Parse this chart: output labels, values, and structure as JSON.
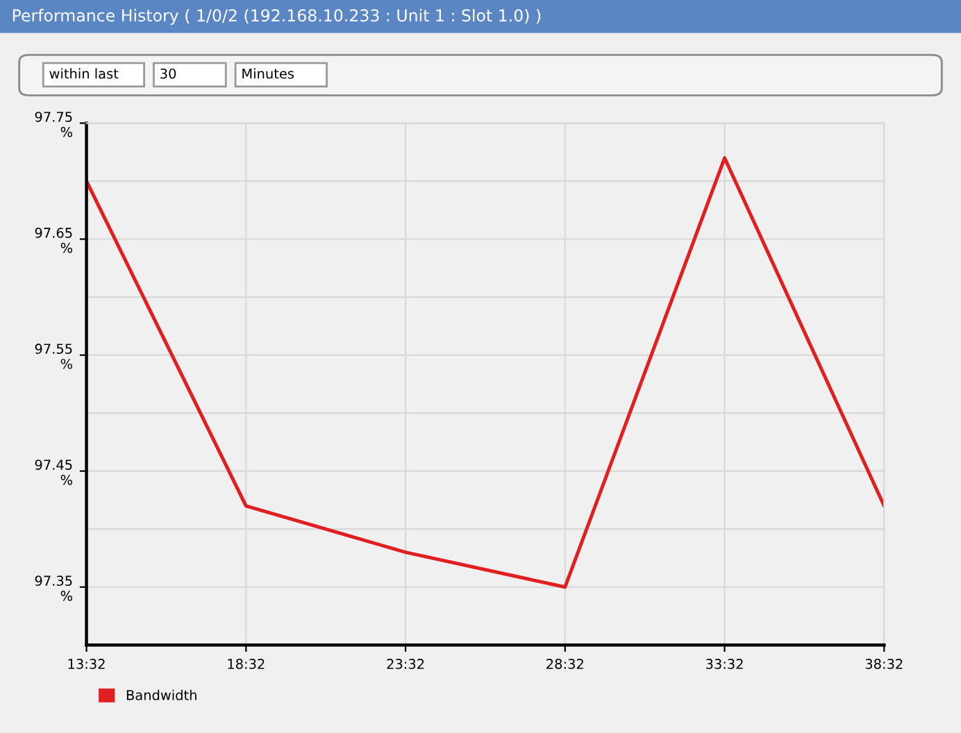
{
  "chart_data": {
    "type": "line",
    "title": "Performance History ( 1/0/2 (192.168.10.233 : Unit 1 : Slot 1.0) )",
    "annotations": [
      "within last",
      "30",
      "Minutes"
    ],
    "categories": [
      "13:32",
      "18:32",
      "23:32",
      "28:32",
      "33:32",
      "38:32"
    ],
    "series": [
      {
        "name": "Bandwidth",
        "color": "#e02020",
        "values": [
          97.7,
          97.42,
          97.38,
          97.35,
          97.72,
          97.42
        ]
      }
    ],
    "ylim": [
      97.3,
      97.75
    ],
    "yticks": [
      {
        "value": 97.35,
        "label": "97.35\n%"
      },
      {
        "value": 97.4,
        "label": null
      },
      {
        "value": 97.45,
        "label": "97.45\n%"
      },
      {
        "value": 97.5,
        "label": null
      },
      {
        "value": 97.55,
        "label": "97.55\n%"
      },
      {
        "value": 97.6,
        "label": null
      },
      {
        "value": 97.65,
        "label": "97.65\n%"
      },
      {
        "value": 97.7,
        "label": null
      },
      {
        "value": 97.75,
        "label": "97.75\n%"
      }
    ],
    "grid": true,
    "legend": "bottom left",
    "marker": "none",
    "line_style": "solid"
  }
}
